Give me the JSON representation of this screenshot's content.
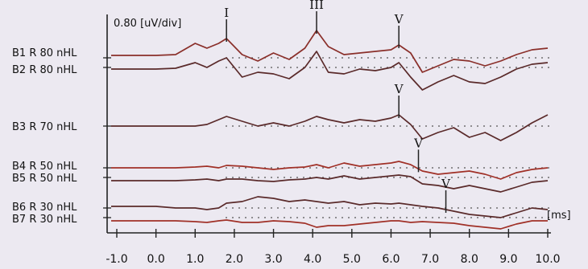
{
  "chart_data": {
    "type": "line",
    "title": "",
    "scale_label": "0.80 [uV/div]",
    "xlabel": "[ms]",
    "ylabel": "",
    "xlim": [
      -1.0,
      10.0
    ],
    "x_ticks": [
      "-1.0",
      "0.0",
      "1.0",
      "2.0",
      "3.0",
      "4.0",
      "5.0",
      "6.0",
      "7.0",
      "8.0",
      "9.0",
      "10.0"
    ],
    "grid": "dotted baselines",
    "x": [
      -1.0,
      0.0,
      0.5,
      1.0,
      1.3,
      1.6,
      1.8,
      2.2,
      2.6,
      3.0,
      3.4,
      3.8,
      4.1,
      4.4,
      4.8,
      5.2,
      5.6,
      6.0,
      6.2,
      6.5,
      6.8,
      7.2,
      7.6,
      8.0,
      8.4,
      8.8,
      9.2,
      9.6,
      10.0
    ],
    "series": [
      {
        "name": "B1 R 80 nHL",
        "color": "#8a2f2a",
        "values": [
          0.15,
          0.15,
          0.2,
          0.9,
          0.6,
          0.9,
          1.2,
          0.2,
          -0.2,
          0.3,
          -0.1,
          0.6,
          1.7,
          0.7,
          0.2,
          0.3,
          0.4,
          0.5,
          0.8,
          0.3,
          -0.9,
          -0.5,
          -0.1,
          -0.2,
          -0.5,
          -0.2,
          0.2,
          0.5,
          0.6
        ]
      },
      {
        "name": "B2 R 80 nHL",
        "color": "#5a2a2a",
        "values": [
          -0.1,
          -0.1,
          -0.05,
          0.3,
          0.0,
          0.4,
          0.6,
          -0.6,
          -0.3,
          -0.4,
          -0.7,
          0.0,
          1.0,
          -0.3,
          -0.4,
          -0.1,
          -0.2,
          0.0,
          0.3,
          -0.6,
          -1.4,
          -0.9,
          -0.5,
          -0.9,
          -1.0,
          -0.6,
          -0.1,
          0.2,
          0.3
        ]
      },
      {
        "name": "B3 R 70 nHL",
        "color": "#5a2a2a",
        "values": [
          0.0,
          0.0,
          0.0,
          0.0,
          0.1,
          0.4,
          0.6,
          0.3,
          0.0,
          0.2,
          0.0,
          0.3,
          0.6,
          0.4,
          0.2,
          0.4,
          0.3,
          0.5,
          0.7,
          0.1,
          -0.8,
          -0.4,
          -0.1,
          -0.7,
          -0.4,
          -0.9,
          -0.4,
          0.2,
          0.7
        ]
      },
      {
        "name": "B4 R 50 nHL",
        "color": "#a03027",
        "values": [
          0.0,
          0.0,
          0.0,
          0.05,
          0.1,
          0.0,
          0.15,
          0.1,
          0.0,
          -0.1,
          0.0,
          0.05,
          0.2,
          0.0,
          0.3,
          0.1,
          0.2,
          0.3,
          0.4,
          0.2,
          -0.2,
          -0.4,
          -0.3,
          -0.2,
          -0.4,
          -0.7,
          -0.3,
          -0.1,
          0.0
        ]
      },
      {
        "name": "B5 R 50 nHL",
        "color": "#5a2a2a",
        "values": [
          -0.2,
          -0.2,
          -0.2,
          -0.15,
          -0.1,
          -0.2,
          -0.1,
          -0.1,
          -0.2,
          -0.25,
          -0.15,
          -0.1,
          0.0,
          -0.1,
          0.1,
          -0.1,
          0.0,
          0.1,
          0.15,
          0.05,
          -0.4,
          -0.5,
          -0.7,
          -0.5,
          -0.7,
          -0.9,
          -0.6,
          -0.3,
          -0.2
        ]
      },
      {
        "name": "B6 R 30 nHL",
        "color": "#5a2a2a",
        "values": [
          0.1,
          0.1,
          0.0,
          0.0,
          -0.1,
          0.0,
          0.3,
          0.4,
          0.7,
          0.6,
          0.4,
          0.5,
          0.4,
          0.3,
          0.4,
          0.2,
          0.3,
          0.25,
          0.3,
          0.2,
          0.1,
          0.0,
          -0.2,
          -0.4,
          -0.5,
          -0.6,
          -0.3,
          0.0,
          -0.1
        ]
      },
      {
        "name": "B7 R 30 nHL",
        "color": "#a03027",
        "values": [
          -0.2,
          -0.2,
          -0.2,
          -0.25,
          -0.3,
          -0.2,
          -0.15,
          -0.3,
          -0.3,
          -0.2,
          -0.25,
          -0.35,
          -0.6,
          -0.5,
          -0.5,
          -0.4,
          -0.3,
          -0.2,
          -0.2,
          -0.3,
          -0.25,
          -0.3,
          -0.35,
          -0.5,
          -0.6,
          -0.7,
          -0.4,
          -0.2,
          -0.2
        ]
      }
    ],
    "peak_markers": [
      {
        "label": "I",
        "series": 0,
        "x": 1.8
      },
      {
        "label": "III",
        "series": 0,
        "x": 4.1
      },
      {
        "label": "V",
        "series": 0,
        "x": 6.2
      },
      {
        "label": "V",
        "series": 2,
        "x": 6.2
      },
      {
        "label": "V",
        "series": 3,
        "x": 6.7
      },
      {
        "label": "V",
        "series": 5,
        "x": 7.4
      }
    ]
  }
}
